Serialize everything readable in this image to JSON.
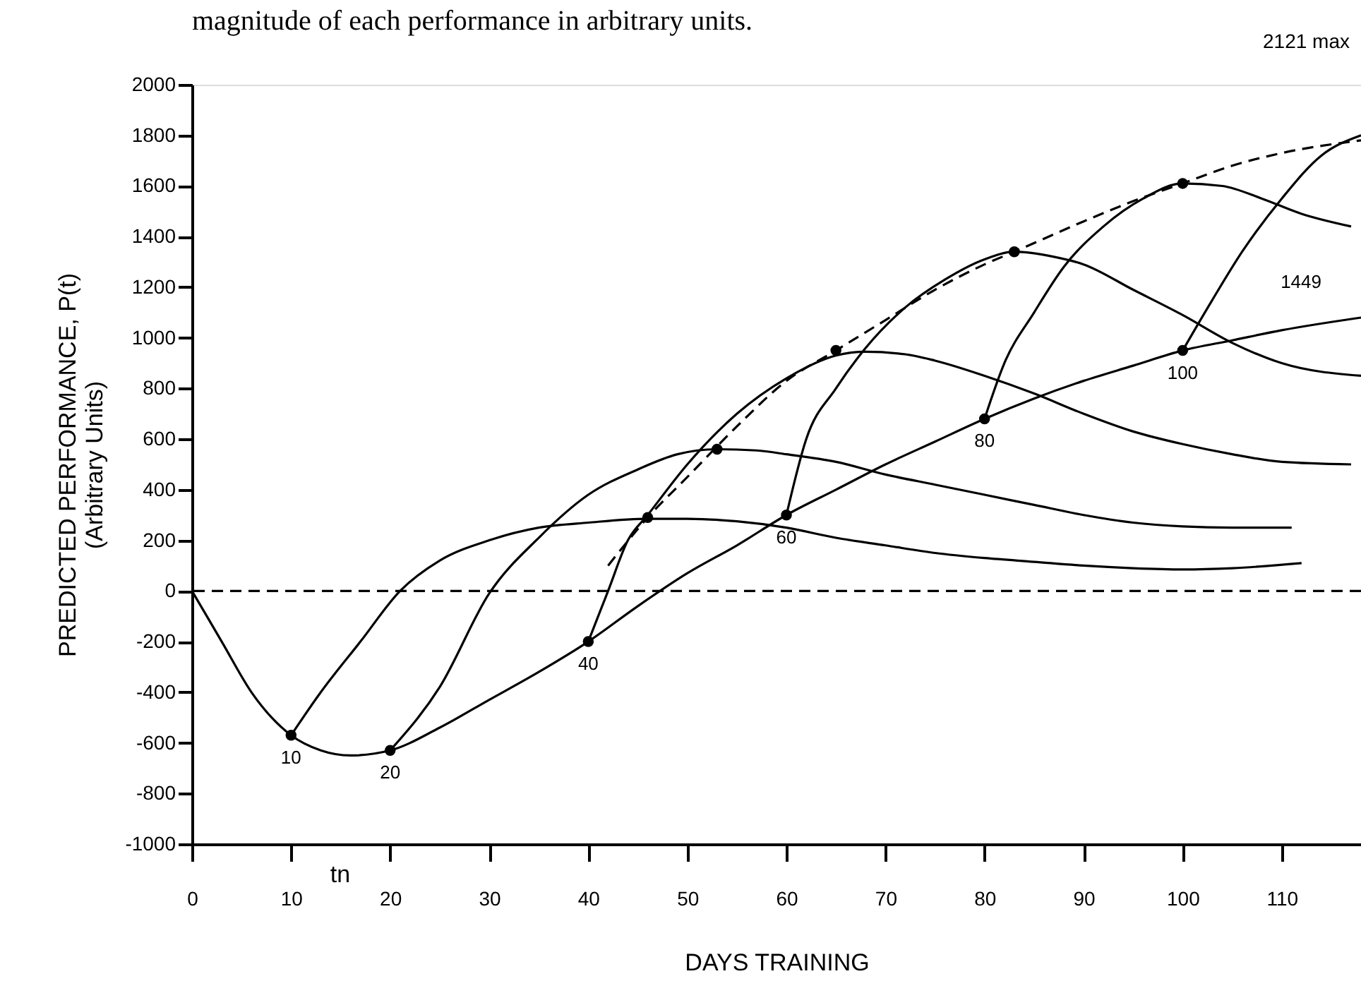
{
  "chart_data": {
    "type": "line",
    "xlabel": "DAYS TRAINING",
    "ylabel": "PREDICTED PERFORMANCE, P(t)\n(Arbitrary Units)",
    "xlim": [
      0,
      118
    ],
    "xticks": [
      0,
      10,
      20,
      30,
      40,
      50,
      60,
      70,
      80,
      90,
      100,
      110
    ],
    "ylim": [
      -1000,
      2000
    ],
    "yticks": [
      -1000,
      -800,
      -600,
      -400,
      -200,
      0,
      200,
      400,
      600,
      800,
      1000,
      1200,
      1400,
      1600,
      1800,
      2000
    ],
    "grid": false,
    "series": [
      {
        "color": "#000000",
        "line_style": "solid",
        "x": [
          0,
          3,
          6,
          10,
          13,
          16,
          20,
          25,
          30,
          35,
          40,
          45,
          50,
          55,
          60,
          65,
          70,
          75,
          80,
          85,
          90,
          95,
          100,
          105,
          110,
          118
        ],
        "values": [
          0,
          -200,
          -400,
          -570,
          -630,
          -650,
          -630,
          -540,
          -430,
          -320,
          -200,
          -60,
          70,
          180,
          300,
          400,
          500,
          590,
          680,
          760,
          830,
          890,
          950,
          990,
          1030,
          1080
        ]
      },
      {
        "color": "#000000",
        "line_style": "solid",
        "x": [
          10,
          13,
          17,
          21,
          25,
          30,
          35,
          40,
          46,
          50,
          55,
          60,
          65,
          70,
          75,
          80,
          85,
          90,
          95,
          100,
          105,
          112
        ],
        "values": [
          -570,
          -400,
          -200,
          0,
          120,
          200,
          250,
          270,
          285,
          285,
          275,
          250,
          210,
          180,
          150,
          130,
          115,
          100,
          90,
          85,
          90,
          110
        ]
      },
      {
        "color": "#000000",
        "line_style": "solid",
        "x": [
          20,
          25,
          30,
          35,
          40,
          45,
          49,
          53,
          57,
          60,
          65,
          70,
          75,
          80,
          85,
          90,
          95,
          100,
          105,
          111
        ],
        "values": [
          -630,
          -380,
          -10,
          210,
          380,
          480,
          540,
          560,
          555,
          540,
          510,
          460,
          420,
          380,
          340,
          300,
          270,
          255,
          250,
          250
        ]
      },
      {
        "color": "#000000",
        "line_style": "solid",
        "x": [
          40,
          42,
          44,
          46,
          50,
          55,
          60,
          65,
          68,
          72,
          75,
          80,
          85,
          90,
          95,
          100,
          105,
          110,
          117
        ],
        "values": [
          -200,
          0,
          200,
          300,
          500,
          700,
          840,
          930,
          945,
          935,
          910,
          850,
          780,
          700,
          630,
          580,
          540,
          510,
          500
        ]
      },
      {
        "color": "#000000",
        "line_style": "solid",
        "x": [
          60,
          62,
          65,
          68,
          72,
          76,
          80,
          83,
          87,
          90,
          95,
          100,
          105,
          110,
          118
        ],
        "values": [
          300,
          600,
          800,
          960,
          1120,
          1230,
          1310,
          1340,
          1320,
          1290,
          1190,
          1090,
          980,
          900,
          850
        ]
      },
      {
        "color": "#000000",
        "line_style": "solid",
        "x": [
          80,
          82,
          85,
          88,
          92,
          96,
          100,
          104,
          108,
          112,
          117
        ],
        "values": [
          680,
          900,
          1100,
          1280,
          1440,
          1550,
          1610,
          1600,
          1550,
          1490,
          1440
        ]
      },
      {
        "color": "#000000",
        "line_style": "solid",
        "x": [
          100,
          103,
          106,
          110,
          114,
          118
        ],
        "values": [
          950,
          1150,
          1340,
          1550,
          1720,
          1800
        ]
      },
      {
        "color": "#000000",
        "line_style": "dashed",
        "x": [
          42,
          46,
          50,
          55,
          60,
          65,
          70,
          75,
          80,
          83,
          90,
          95,
          100,
          105,
          110,
          118
        ],
        "values": [
          100,
          290,
          450,
          650,
          830,
          950,
          1070,
          1190,
          1290,
          1340,
          1460,
          1540,
          1610,
          1680,
          1730,
          1780
        ]
      },
      {
        "type": "scatter",
        "color": "#000000",
        "marker": "circle",
        "x": [
          10,
          20,
          40,
          60,
          80,
          100,
          46,
          53,
          65,
          83,
          100
        ],
        "values": [
          -570,
          -630,
          -200,
          300,
          680,
          950,
          290,
          560,
          950,
          1340,
          1610
        ]
      }
    ],
    "ref_lines": [
      {
        "axis": "y",
        "value": 0,
        "line_style": "dashed",
        "color": "#000000"
      }
    ],
    "annotations": [
      "magnitude of each performance in arbitrary units.",
      "2121 max",
      {
        "text": "10",
        "x": 10,
        "y": -570
      },
      {
        "text": "20",
        "x": 20,
        "y": -630
      },
      {
        "text": "40",
        "x": 40,
        "y": -200
      },
      {
        "text": "60",
        "x": 60,
        "y": 300
      },
      {
        "text": "80",
        "x": 80,
        "y": 680
      },
      {
        "text": "100",
        "x": 100,
        "y": 950
      },
      "1449",
      "tn"
    ]
  }
}
